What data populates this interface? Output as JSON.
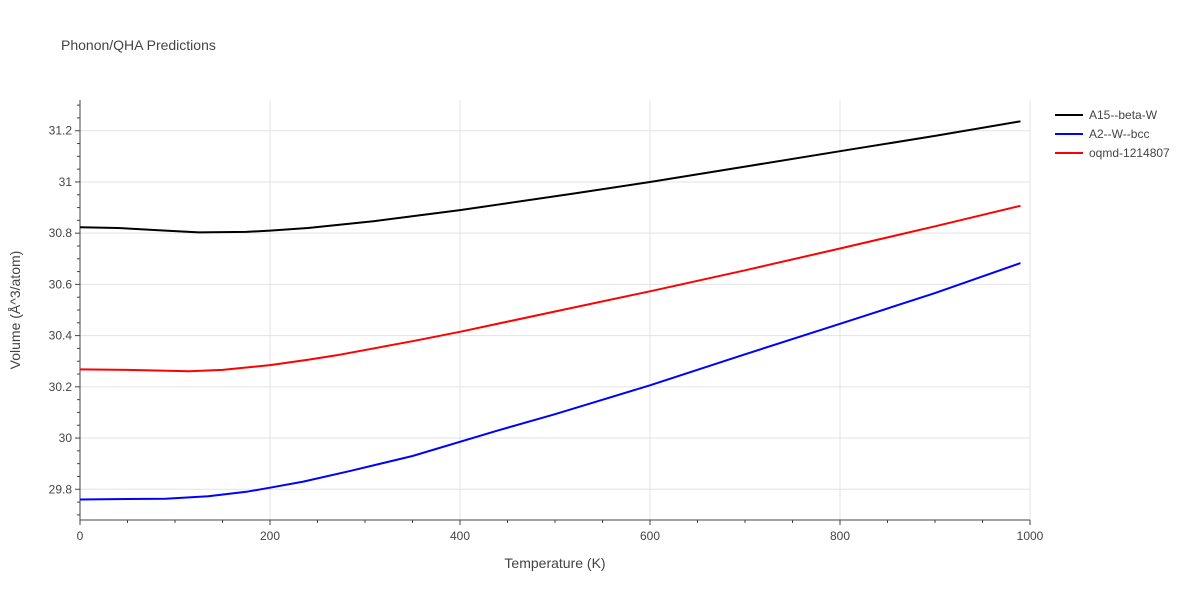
{
  "chart_data": {
    "type": "line",
    "title": "Phonon/QHA Predictions",
    "xlabel": "Temperature (K)",
    "ylabel": "Volume (Å^3/atom)",
    "xlim": [
      0,
      1000
    ],
    "ylim": [
      29.68,
      31.32
    ],
    "x_ticks": [
      0,
      200,
      400,
      600,
      800,
      1000
    ],
    "x_tick_labels": [
      "0",
      "200",
      "400",
      "600",
      "800",
      "1000"
    ],
    "y_ticks": [
      29.8,
      30,
      30.2,
      30.4,
      30.6,
      30.8,
      31,
      31.2
    ],
    "y_tick_labels": [
      "29.8",
      "30",
      "30.2",
      "30.4",
      "30.6",
      "30.8",
      "31",
      "31.2"
    ],
    "grid": true,
    "legend_position": "right",
    "series": [
      {
        "name": "A15--beta-W",
        "color": "#000000",
        "x": [
          0,
          40,
          90,
          125,
          175,
          200,
          240,
          310,
          400,
          520,
          600,
          700,
          800,
          900,
          990
        ],
        "y": [
          30.823,
          30.82,
          30.81,
          30.803,
          30.805,
          30.81,
          30.82,
          30.847,
          30.89,
          30.955,
          31.0,
          31.06,
          31.12,
          31.18,
          31.237
        ]
      },
      {
        "name": "A2--W--bcc",
        "color": "#0000ff",
        "x": [
          0,
          50,
          90,
          135,
          175,
          200,
          235,
          285,
          350,
          440,
          500,
          600,
          700,
          800,
          900,
          990
        ],
        "y": [
          29.76,
          29.762,
          29.763,
          29.773,
          29.79,
          29.806,
          29.83,
          29.872,
          29.93,
          30.03,
          30.093,
          30.206,
          30.327,
          30.446,
          30.566,
          30.683
        ]
      },
      {
        "name": "oqmd-1214807",
        "color": "#ff0000",
        "x": [
          0,
          50,
          115,
          150,
          200,
          240,
          270,
          350,
          400,
          500,
          600,
          700,
          800,
          900,
          990
        ],
        "y": [
          30.268,
          30.266,
          30.261,
          30.266,
          30.285,
          30.306,
          30.323,
          30.378,
          30.415,
          30.494,
          30.573,
          30.655,
          30.74,
          30.827,
          30.907
        ]
      }
    ]
  }
}
